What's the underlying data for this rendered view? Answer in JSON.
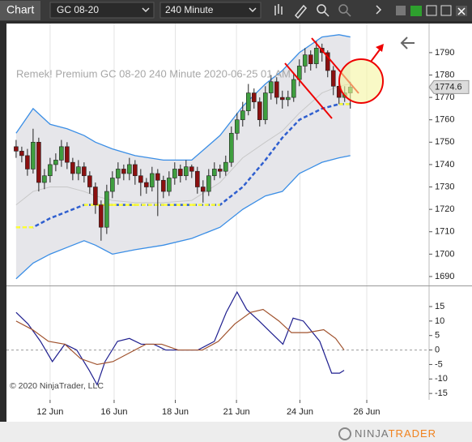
{
  "toolbar": {
    "tab": "Chart",
    "instrument": "GC 08-20",
    "interval": "240 Minute"
  },
  "chart_data": [
    {
      "type": "candlestick",
      "title": "Remek!  Premium  GC 08-20  240 Minute  2020-06-25 01 AM",
      "x": [
        0,
        1,
        2,
        3,
        4,
        5,
        6,
        7,
        8,
        9,
        10,
        11,
        12,
        13,
        14,
        15,
        16,
        17,
        18,
        19,
        20,
        21,
        22,
        23,
        24,
        25,
        26,
        27,
        28,
        29,
        30,
        31,
        32,
        33,
        34,
        35,
        36,
        37,
        38,
        39,
        40,
        41,
        42,
        43,
        44,
        45,
        46,
        47,
        48,
        49,
        50,
        51,
        52,
        53,
        54,
        55,
        56,
        57,
        58,
        59
      ],
      "open": [
        1748,
        1746,
        1744,
        1738,
        1750,
        1732,
        1735,
        1740,
        1742,
        1748,
        1741,
        1736,
        1739,
        1735,
        1730,
        1722,
        1712,
        1728,
        1734,
        1738,
        1736,
        1740,
        1735,
        1732,
        1730,
        1736,
        1733,
        1728,
        1734,
        1738,
        1735,
        1739,
        1737,
        1730,
        1728,
        1735,
        1738,
        1737,
        1741,
        1754,
        1760,
        1764,
        1772,
        1768,
        1760,
        1772,
        1777,
        1770,
        1769,
        1770,
        1778,
        1784,
        1789,
        1785,
        1792,
        1790,
        1782,
        1775,
        1770,
        1772
      ],
      "high": [
        1751,
        1748,
        1747,
        1756,
        1752,
        1738,
        1743,
        1745,
        1751,
        1750,
        1743,
        1742,
        1741,
        1737,
        1732,
        1724,
        1731,
        1737,
        1741,
        1740,
        1743,
        1742,
        1738,
        1734,
        1739,
        1738,
        1735,
        1737,
        1741,
        1740,
        1742,
        1740,
        1739,
        1733,
        1738,
        1741,
        1740,
        1744,
        1757,
        1763,
        1768,
        1776,
        1774,
        1770,
        1775,
        1780,
        1779,
        1773,
        1773,
        1781,
        1787,
        1792,
        1791,
        1795,
        1794,
        1791,
        1784,
        1777,
        1775,
        1777
      ],
      "low": [
        1743,
        1741,
        1735,
        1736,
        1728,
        1729,
        1732,
        1737,
        1739,
        1738,
        1733,
        1733,
        1732,
        1727,
        1718,
        1706,
        1709,
        1725,
        1731,
        1733,
        1733,
        1731,
        1726,
        1727,
        1728,
        1717,
        1725,
        1726,
        1731,
        1732,
        1733,
        1734,
        1727,
        1723,
        1726,
        1733,
        1734,
        1735,
        1739,
        1751,
        1757,
        1762,
        1765,
        1757,
        1758,
        1769,
        1767,
        1765,
        1766,
        1768,
        1775,
        1781,
        1782,
        1783,
        1786,
        1779,
        1771,
        1767,
        1768,
        1765
      ],
      "close": [
        1746,
        1744,
        1738,
        1750,
        1732,
        1735,
        1740,
        1742,
        1748,
        1741,
        1736,
        1739,
        1735,
        1730,
        1722,
        1712,
        1728,
        1734,
        1738,
        1736,
        1740,
        1735,
        1732,
        1730,
        1736,
        1733,
        1728,
        1734,
        1738,
        1735,
        1739,
        1737,
        1730,
        1728,
        1735,
        1738,
        1737,
        1741,
        1754,
        1760,
        1764,
        1772,
        1768,
        1760,
        1772,
        1777,
        1770,
        1769,
        1770,
        1778,
        1784,
        1789,
        1785,
        1792,
        1790,
        1782,
        1775,
        1770,
        1772,
        1774.6
      ],
      "up_color": "#3f9e3f",
      "down_color": "#8b1010",
      "band": {
        "x": [
          0,
          3,
          6,
          9,
          12,
          14,
          17,
          21,
          26,
          31,
          36,
          40,
          44,
          47,
          50,
          54,
          57,
          59
        ],
        "upper": [
          1754,
          1765,
          1758,
          1756,
          1753,
          1750,
          1747,
          1744,
          1742,
          1742,
          1753,
          1766,
          1776,
          1782,
          1790,
          1797,
          1798,
          1797
        ],
        "lower": [
          1689,
          1696,
          1700,
          1703,
          1706,
          1704,
          1700,
          1702,
          1704,
          1707,
          1712,
          1720,
          1726,
          1728,
          1736,
          1741,
          1743,
          1744
        ],
        "color": "#3a8ee6",
        "fill": "#e6e6ea"
      },
      "overlays": [
        {
          "x": [
            0,
            3,
            6,
            9,
            12,
            14,
            17,
            21,
            26,
            31,
            36,
            40,
            44,
            47,
            50,
            54,
            57,
            59
          ],
          "values": [
            1722,
            1728,
            1730,
            1730,
            1728,
            1726,
            1724,
            1723,
            1723,
            1724,
            1732,
            1743,
            1750,
            1755,
            1763,
            1772,
            1775,
            1776
          ],
          "color": "#c8c8c8"
        },
        {
          "x": [
            0,
            3,
            6,
            9,
            12,
            14,
            17,
            21,
            26,
            31,
            36,
            40,
            44,
            47,
            50,
            54,
            57,
            59
          ],
          "values": [
            1712,
            1712,
            1716,
            1719,
            1722,
            1722,
            1722,
            1722,
            1722,
            1722,
            1722,
            1730,
            1742,
            1752,
            1760,
            1765,
            1767,
            1767
          ],
          "color": "#2f5fcf",
          "flat_color": "#ffff33",
          "dashed": true
        }
      ],
      "xlim": [
        -1.7,
        72.9
      ],
      "ylim": [
        1686,
        1803
      ],
      "yticks": [
        1690,
        1700,
        1710,
        1720,
        1730,
        1740,
        1750,
        1760,
        1770,
        1780,
        1790
      ]
    },
    {
      "type": "line",
      "series": [
        {
          "color": "#1f1f8f",
          "x": [
            0,
            2.1,
            4.3,
            6.4,
            8.6,
            10.7,
            12.9,
            14.3,
            15.7,
            17.9,
            20,
            22.1,
            24.3,
            26.4,
            29.3,
            32.1,
            35,
            37.1,
            39,
            40.7,
            42.9,
            45,
            47.1,
            48.9,
            50.7,
            53.6,
            55.7,
            57.1,
            57.9
          ],
          "values": [
            13,
            9,
            3,
            -4,
            2,
            0,
            -7,
            -12,
            -4,
            3,
            4,
            2,
            2,
            0,
            0,
            0,
            3,
            13,
            20,
            14,
            10,
            6,
            2,
            11,
            10,
            3,
            -8,
            -8,
            -7
          ]
        },
        {
          "color": "#a0522d",
          "x": [
            0,
            2.9,
            5.7,
            8.6,
            11.4,
            14.3,
            17.1,
            20,
            22.9,
            25.7,
            28.6,
            32.9,
            35.7,
            38.6,
            41.4,
            43.6,
            46.4,
            48.6,
            51.4,
            54.3,
            56.4,
            57.9
          ],
          "values": [
            10,
            7,
            3,
            2,
            -3,
            -5,
            -4,
            -1,
            2,
            2,
            0,
            0,
            3,
            9,
            13,
            14,
            10,
            6,
            6,
            7,
            4,
            0
          ]
        }
      ],
      "xlim": [
        -1.7,
        72.9
      ],
      "ylim": [
        -17.2,
        22
      ],
      "yticks": [
        15,
        10,
        5,
        0,
        -5,
        -10,
        -15
      ],
      "zero_line": true,
      "grid": "x",
      "xticks": [
        {
          "value": 6,
          "label": "12 Jun"
        },
        {
          "value": 17.3,
          "label": "16 Jun"
        },
        {
          "value": 28.1,
          "label": "18 Jun"
        },
        {
          "value": 38.9,
          "label": "21 Jun"
        },
        {
          "value": 50.1,
          "label": "24 Jun"
        },
        {
          "value": 61.9,
          "label": "26 Jun"
        }
      ]
    }
  ],
  "footer": {
    "copyright": "© 2020 NinjaTrader, LLC",
    "brand_a": "NINJA",
    "brand_b": "TRADER"
  }
}
